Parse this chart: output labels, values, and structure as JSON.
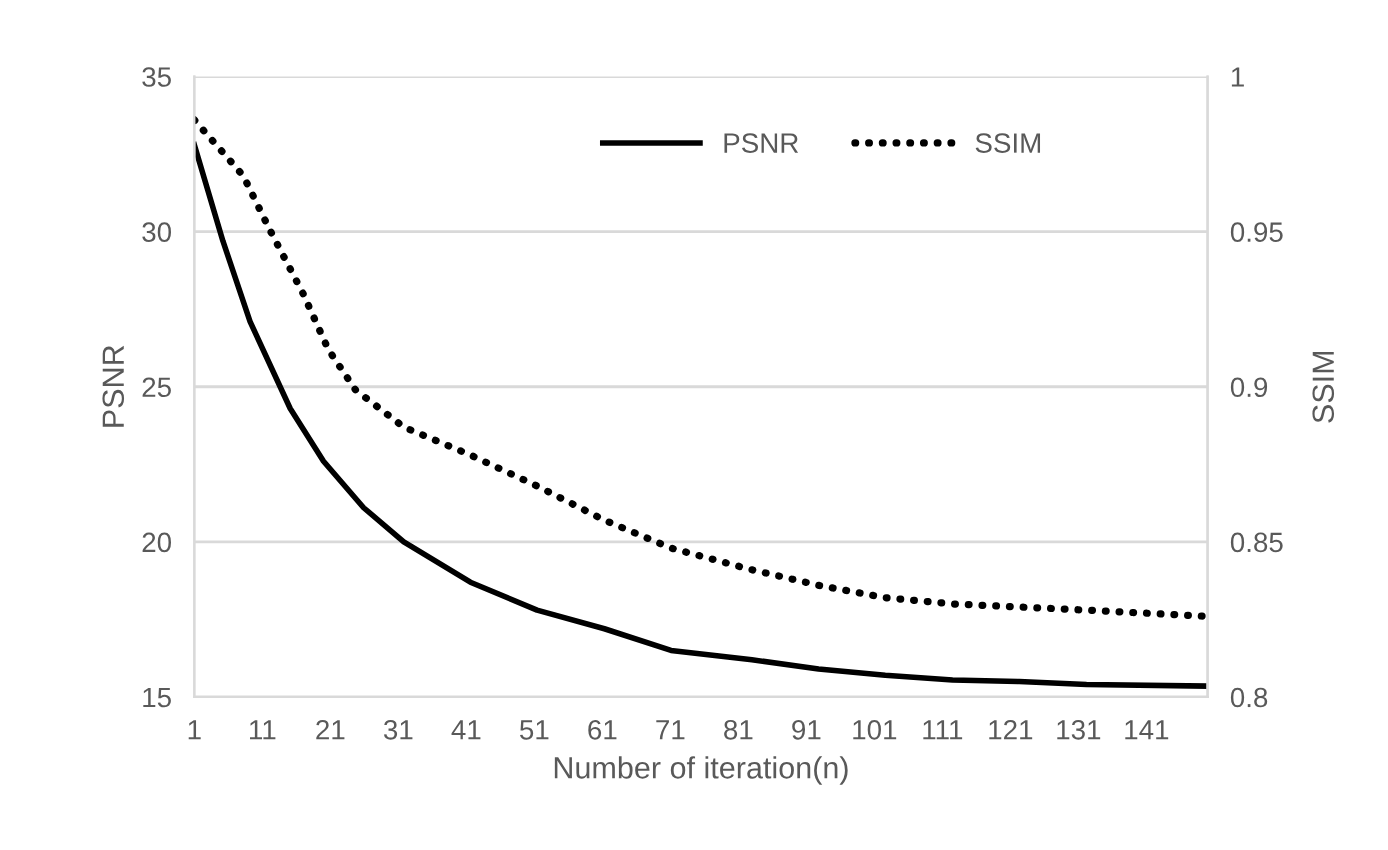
{
  "chart_data": {
    "type": "line",
    "xlabel": "Number of iteration(n)",
    "ylabel": "PSNR",
    "y2label": "SSIM",
    "xlim": [
      1,
      150
    ],
    "xticks": [
      1,
      11,
      21,
      31,
      41,
      51,
      61,
      71,
      81,
      91,
      101,
      111,
      121,
      131,
      141
    ],
    "ylim": [
      15,
      35
    ],
    "yticks": [
      15,
      20,
      25,
      30,
      35
    ],
    "y2lim": [
      0.8,
      1
    ],
    "y2ticks": [
      0.8,
      0.85,
      0.9,
      0.95,
      1
    ],
    "grid": "y",
    "legend": "top",
    "marker": "none",
    "series": [
      {
        "name": "PSNR",
        "color": "#000000",
        "line_style": "solid",
        "x": [
          1,
          5.2,
          9.2,
          15.1,
          20,
          25.9,
          31.8,
          41.6,
          51.4,
          61.3,
          71.1,
          83,
          92.8,
          102.6,
          112.5,
          122.3,
          132.2,
          150
        ],
        "values": [
          32.8,
          29.7,
          27.1,
          24.3,
          22.6,
          21.1,
          20.0,
          18.7,
          17.8,
          17.2,
          16.5,
          16.2,
          15.9,
          15.7,
          15.55,
          15.5,
          15.4,
          15.35
        ]
      },
      {
        "name": "SSIM",
        "color": "#000000",
        "line_style": "dotted",
        "axis": "y2",
        "x": [
          1,
          8.2,
          12,
          17,
          20.7,
          24.7,
          31.8,
          41.6,
          51.4,
          61.3,
          71.1,
          83,
          92.8,
          102.6,
          112.5,
          122.3,
          132.2,
          150
        ],
        "values": [
          0.986,
          0.968,
          0.951,
          0.93,
          0.912,
          0.899,
          0.887,
          0.878,
          0.868,
          0.857,
          0.848,
          0.841,
          0.836,
          0.832,
          0.83,
          0.829,
          0.828,
          0.826
        ]
      }
    ]
  }
}
